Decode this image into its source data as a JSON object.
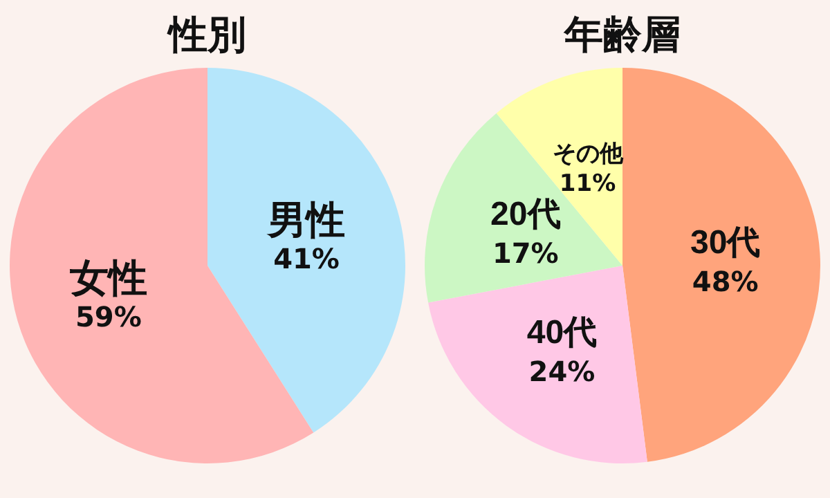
{
  "chart_data": [
    {
      "type": "pie",
      "title": "性別",
      "categories": [
        "男性",
        "女性"
      ],
      "values": [
        41,
        59
      ],
      "colors": [
        "#b5e6fb",
        "#ffb5b5"
      ],
      "value_labels": [
        "41%",
        "59%"
      ],
      "legend": false
    },
    {
      "type": "pie",
      "title": "年齢層",
      "categories": [
        "30代",
        "40代",
        "20代",
        "その他"
      ],
      "values": [
        48,
        24,
        17,
        11
      ],
      "colors": [
        "#ffa47c",
        "#ffc8e6",
        "#ccf7c4",
        "#ffffaa"
      ],
      "value_labels": [
        "48%",
        "24%",
        "17%",
        "11%"
      ],
      "legend": false
    }
  ]
}
